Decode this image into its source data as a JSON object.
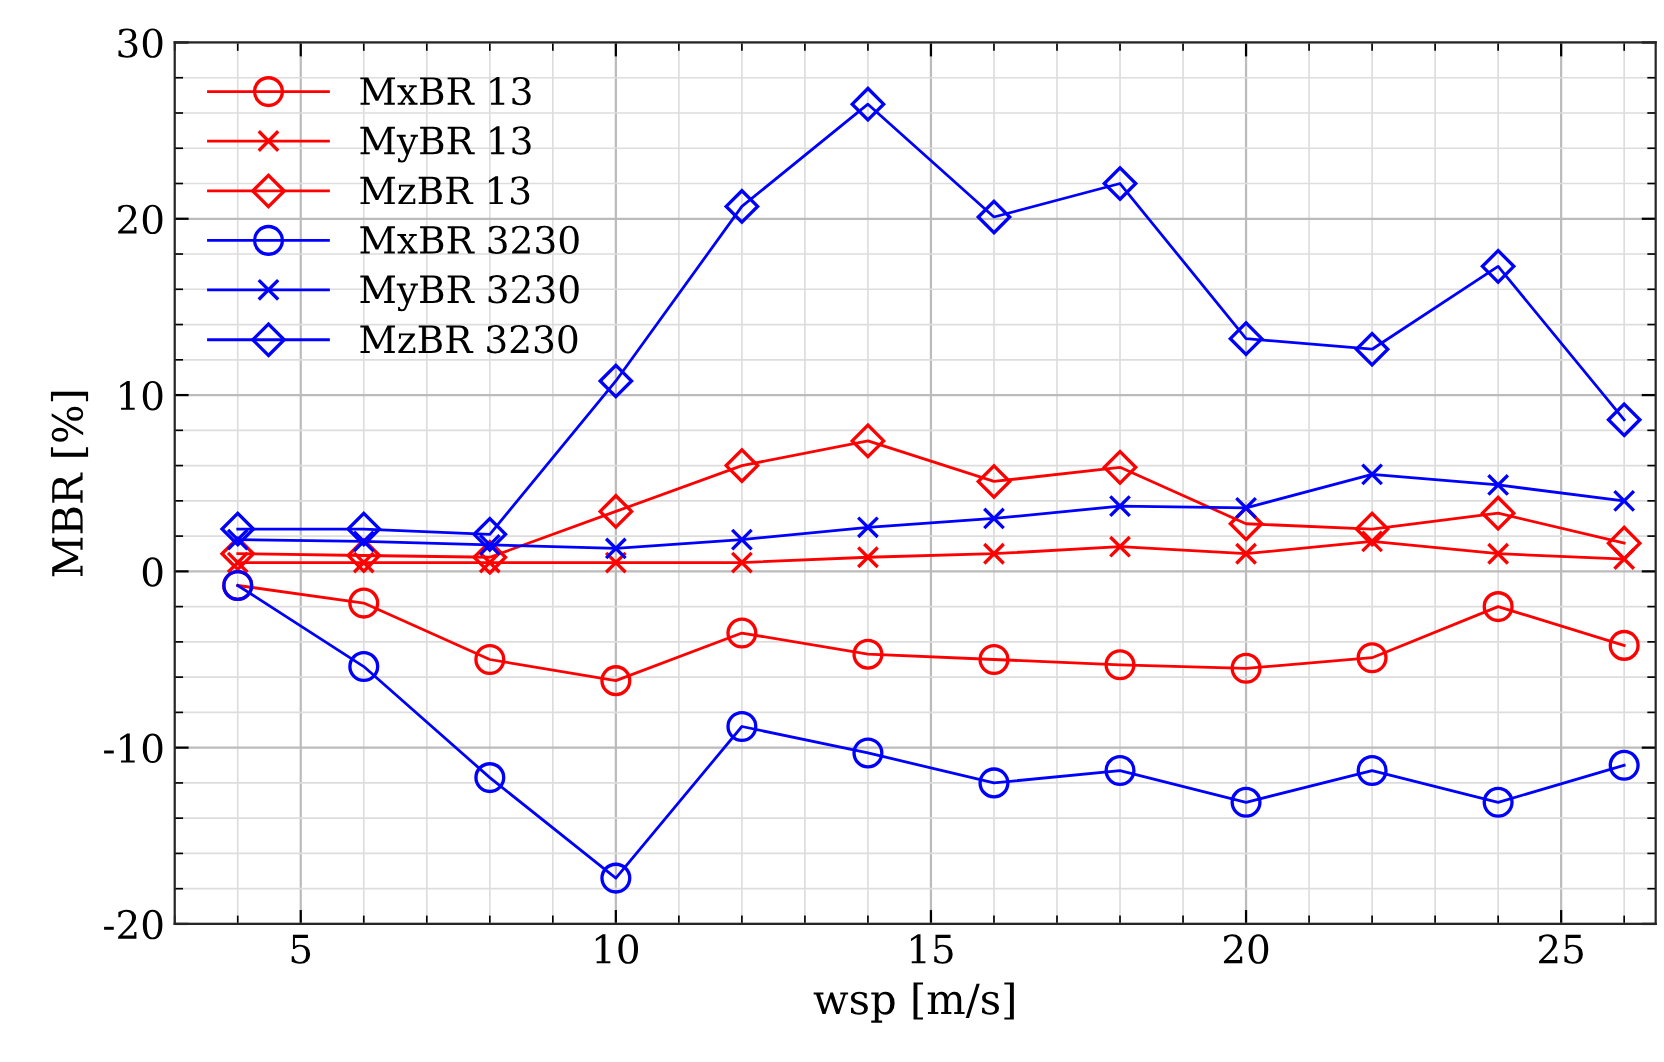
{
  "chart_data": {
    "type": "line",
    "xlabel": "wsp [m/s]",
    "ylabel": "MBR [%]",
    "x": [
      4,
      6,
      8,
      10,
      12,
      14,
      16,
      18,
      20,
      22,
      24,
      26
    ],
    "xlim": [
      3,
      26.5
    ],
    "xticks": [
      5,
      10,
      15,
      20,
      25
    ],
    "ylim": [
      -20,
      30
    ],
    "yticks": [
      -20,
      -10,
      0,
      10,
      20,
      30
    ],
    "grid": true,
    "legend": "top left",
    "series": [
      {
        "name": "MxBR 13",
        "color": "#ff0000",
        "marker": "circle",
        "values": [
          -0.8,
          -1.8,
          -5,
          -6.2,
          -3.5,
          -4.7,
          -5,
          -5.3,
          -5.5,
          -4.9,
          -2,
          -4.2
        ]
      },
      {
        "name": "MyBR 13",
        "color": "#ff0000",
        "marker": "cross",
        "values": [
          0.5,
          0.5,
          0.5,
          0.5,
          0.5,
          0.8,
          1.0,
          1.4,
          1.0,
          1.7,
          1.0,
          0.7
        ]
      },
      {
        "name": "MzBR 13",
        "color": "#ff0000",
        "marker": "diamond",
        "values": [
          1.0,
          0.9,
          0.8,
          3.4,
          6.0,
          7.4,
          5.1,
          5.9,
          2.7,
          2.4,
          3.3,
          1.6
        ]
      },
      {
        "name": "MxBR 3230",
        "color": "#0000ff",
        "marker": "circle",
        "values": [
          -0.8,
          -5.4,
          -11.7,
          -17.4,
          -8.8,
          -10.3,
          -12,
          -11.3,
          -13.1,
          -11.3,
          -13.1,
          -11
        ]
      },
      {
        "name": "MyBR 3230",
        "color": "#0000ff",
        "marker": "cross",
        "values": [
          1.8,
          1.7,
          1.5,
          1.3,
          1.8,
          2.5,
          3.0,
          3.7,
          3.6,
          5.5,
          4.9,
          4.0
        ]
      },
      {
        "name": "MzBR 3230",
        "color": "#0000ff",
        "marker": "diamond",
        "values": [
          2.4,
          2.4,
          2.1,
          10.8,
          20.7,
          26.5,
          20.1,
          22,
          13.2,
          12.6,
          17.3,
          8.6
        ]
      }
    ]
  }
}
